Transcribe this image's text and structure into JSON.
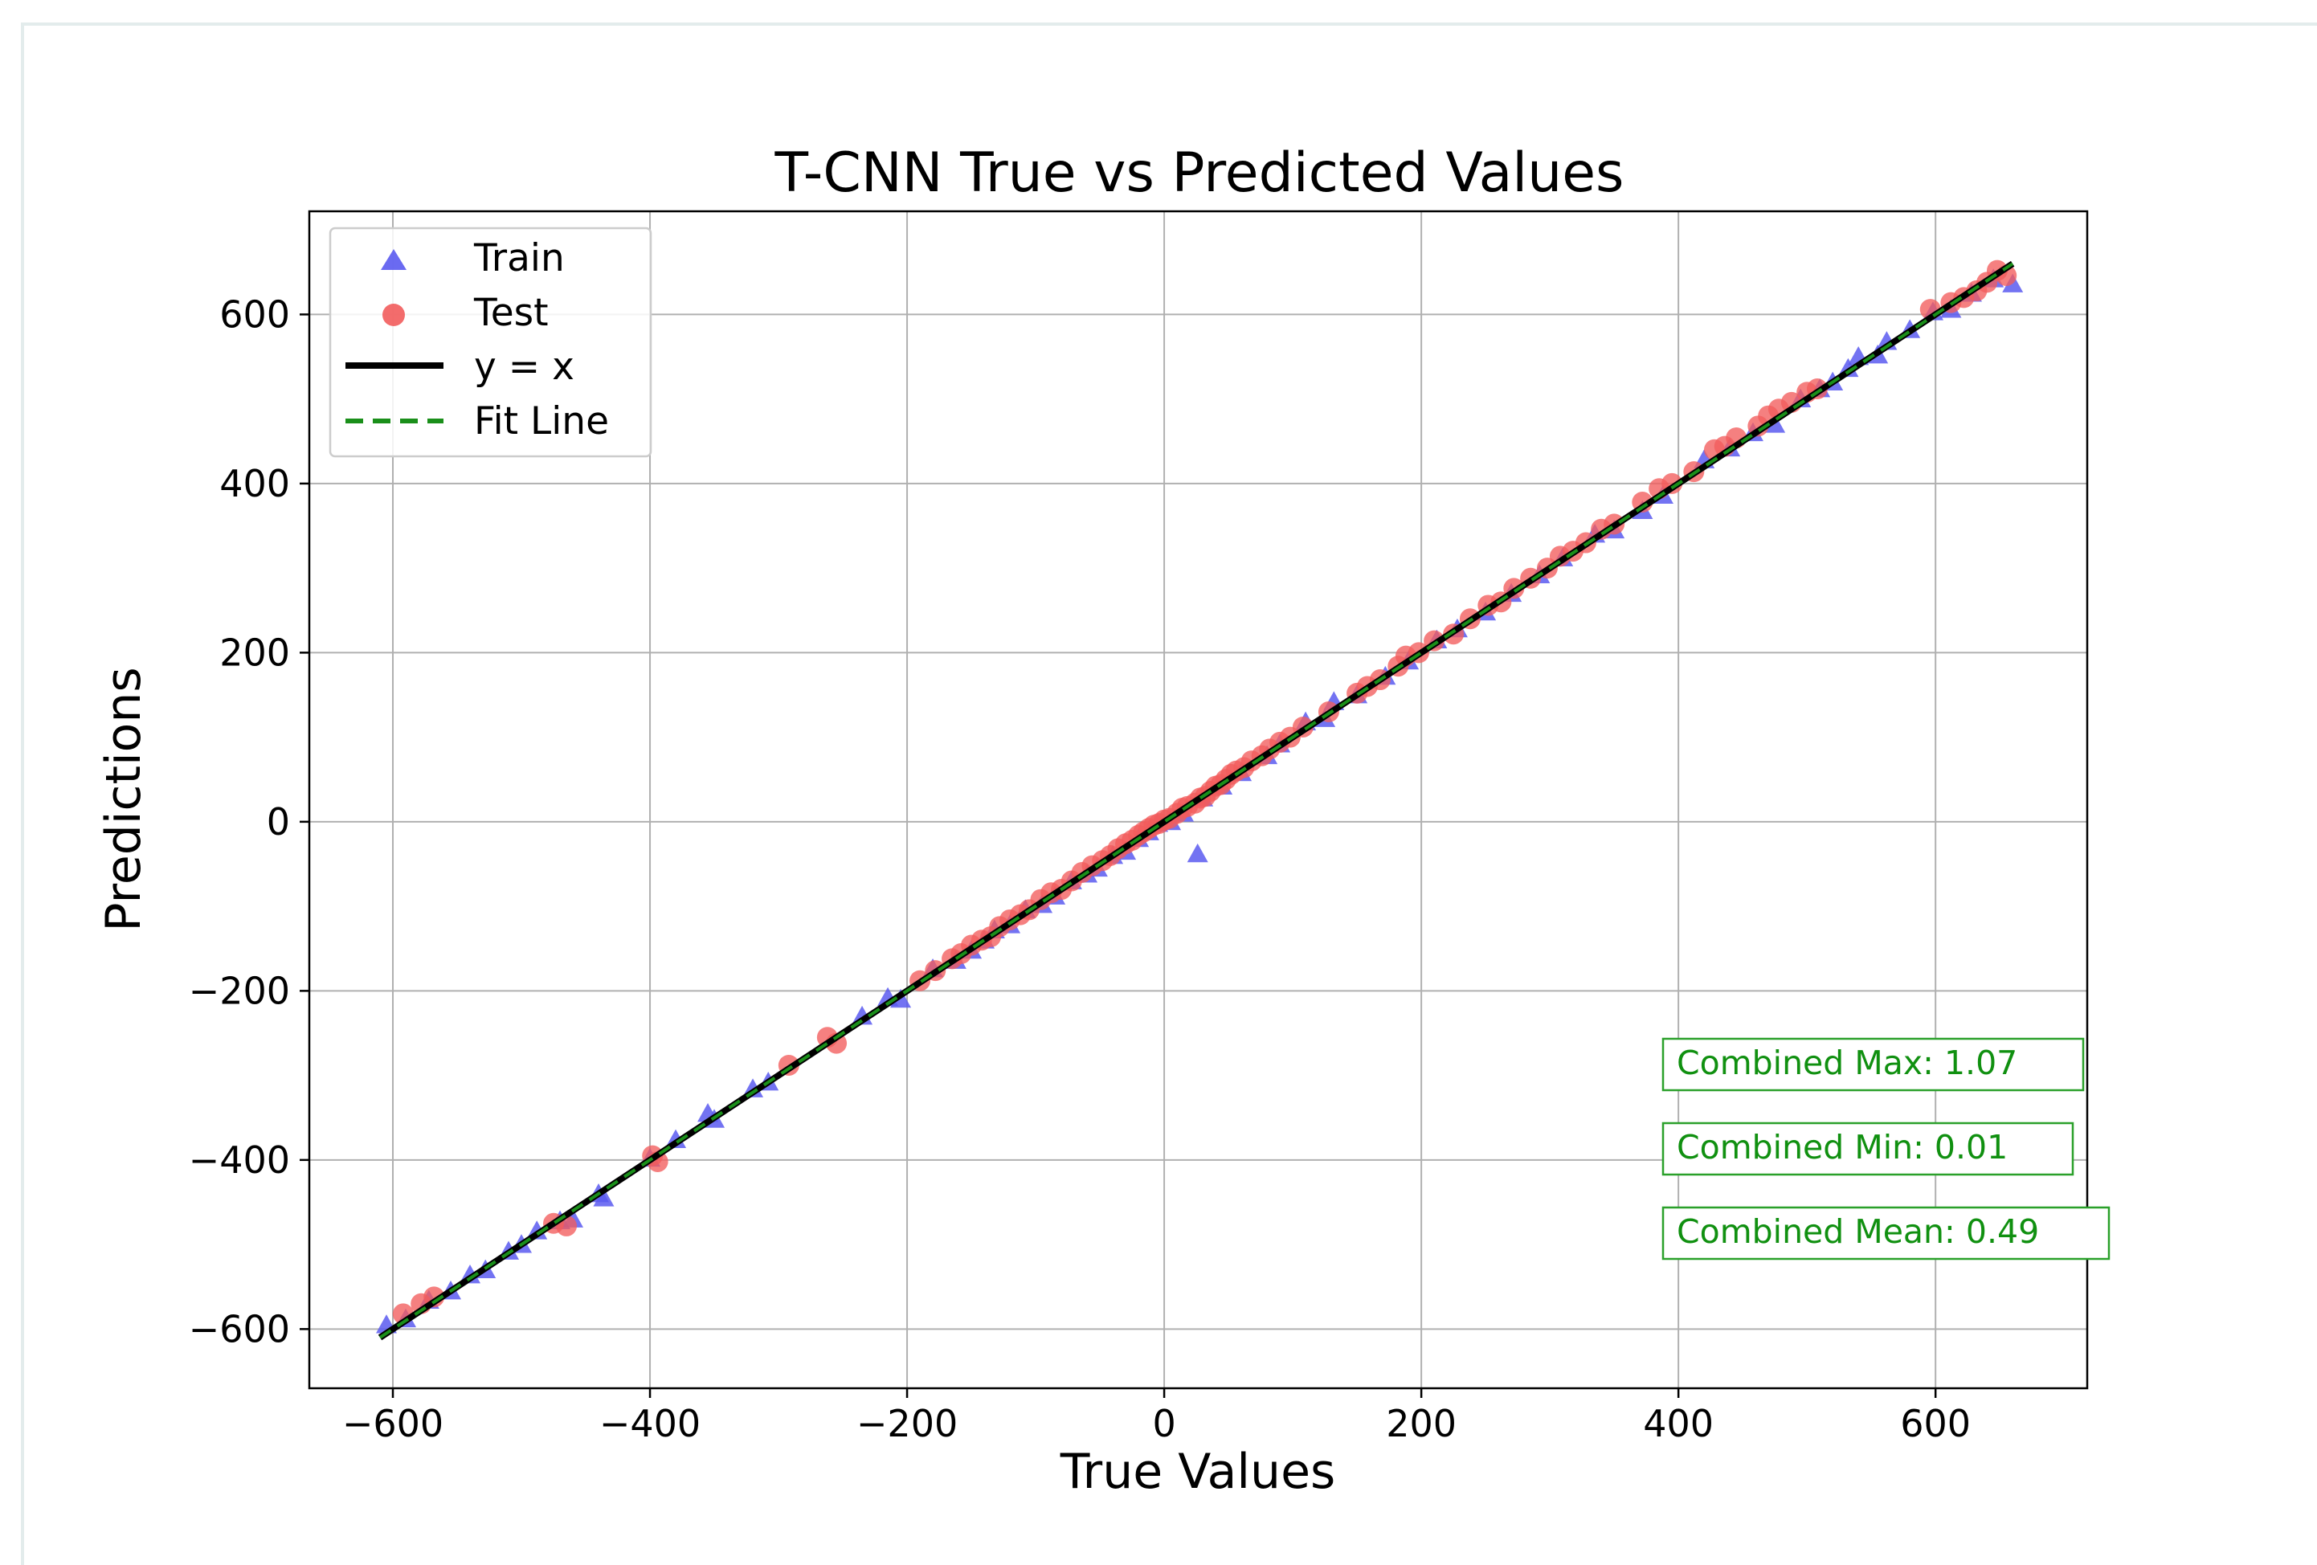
{
  "chart_data": {
    "type": "scatter",
    "title": "T-CNN True vs Predicted Values",
    "xlabel": "True Values",
    "ylabel": "Predictions",
    "xlim": [
      -665,
      718
    ],
    "ylim": [
      -670,
      722
    ],
    "xticks": [
      -600,
      -400,
      -200,
      0,
      200,
      400,
      600
    ],
    "yticks": [
      -600,
      -400,
      -200,
      0,
      200,
      400,
      600
    ],
    "xtick_labels": [
      "−600",
      "−400",
      "−200",
      "0",
      "200",
      "400",
      "600"
    ],
    "ytick_labels": [
      "−600",
      "−400",
      "−200",
      "0",
      "200",
      "400",
      "600"
    ],
    "grid": true,
    "legend_position": "upper-left",
    "colors": {
      "train": "#5a5af0",
      "test": "#f25c5c",
      "identity": "#000000",
      "fit": "#1a8f1a",
      "stats": "#109010"
    },
    "series": [
      {
        "name": "Train",
        "marker": "triangle",
        "points": [
          [
            -605,
            -595
          ],
          [
            -590,
            -588
          ],
          [
            -572,
            -566
          ],
          [
            -555,
            -555
          ],
          [
            -540,
            -536
          ],
          [
            -528,
            -530
          ],
          [
            -510,
            -508
          ],
          [
            -500,
            -500
          ],
          [
            -488,
            -484
          ],
          [
            -470,
            -472
          ],
          [
            -460,
            -470
          ],
          [
            -440,
            -440
          ],
          [
            -436,
            -445
          ],
          [
            -400,
            -398
          ],
          [
            -380,
            -376
          ],
          [
            -355,
            -345
          ],
          [
            -350,
            -352
          ],
          [
            -320,
            -316
          ],
          [
            -308,
            -308
          ],
          [
            -235,
            -230
          ],
          [
            -215,
            -208
          ],
          [
            -205,
            -210
          ],
          [
            -180,
            -174
          ],
          [
            -162,
            -164
          ],
          [
            -150,
            -152
          ],
          [
            -140,
            -140
          ],
          [
            -132,
            -128
          ],
          [
            -120,
            -122
          ],
          [
            -108,
            -104
          ],
          [
            -95,
            -98
          ],
          [
            -85,
            -88
          ],
          [
            -72,
            -70
          ],
          [
            -60,
            -62
          ],
          [
            -52,
            -55
          ],
          [
            -40,
            -40
          ],
          [
            -30,
            -35
          ],
          [
            -20,
            -20
          ],
          [
            -12,
            -12
          ],
          [
            -5,
            -2
          ],
          [
            5,
            0
          ],
          [
            15,
            10
          ],
          [
            26,
            -38
          ],
          [
            30,
            28
          ],
          [
            45,
            42
          ],
          [
            60,
            58
          ],
          [
            80,
            78
          ],
          [
            90,
            92
          ],
          [
            110,
            118
          ],
          [
            125,
            122
          ],
          [
            132,
            142
          ],
          [
            150,
            150
          ],
          [
            172,
            172
          ],
          [
            190,
            190
          ],
          [
            212,
            215
          ],
          [
            228,
            228
          ],
          [
            250,
            248
          ],
          [
            270,
            270
          ],
          [
            292,
            292
          ],
          [
            310,
            312
          ],
          [
            335,
            340
          ],
          [
            350,
            345
          ],
          [
            372,
            368
          ],
          [
            388,
            386
          ],
          [
            420,
            428
          ],
          [
            440,
            442
          ],
          [
            458,
            460
          ],
          [
            475,
            470
          ],
          [
            495,
            500
          ],
          [
            510,
            512
          ],
          [
            520,
            520
          ],
          [
            532,
            536
          ],
          [
            540,
            550
          ],
          [
            555,
            552
          ],
          [
            562,
            568
          ],
          [
            580,
            582
          ],
          [
            598,
            603
          ],
          [
            612,
            606
          ],
          [
            628,
            625
          ],
          [
            645,
            642
          ],
          [
            660,
            636
          ]
        ]
      },
      {
        "name": "Test",
        "marker": "circle",
        "points": [
          [
            -592,
            -582
          ],
          [
            -578,
            -570
          ],
          [
            -568,
            -562
          ],
          [
            -475,
            -475
          ],
          [
            -465,
            -478
          ],
          [
            -398,
            -395
          ],
          [
            -394,
            -402
          ],
          [
            -292,
            -288
          ],
          [
            -262,
            -255
          ],
          [
            -255,
            -262
          ],
          [
            -190,
            -188
          ],
          [
            -178,
            -176
          ],
          [
            -165,
            -162
          ],
          [
            -158,
            -156
          ],
          [
            -150,
            -146
          ],
          [
            -142,
            -140
          ],
          [
            -135,
            -136
          ],
          [
            -128,
            -124
          ],
          [
            -120,
            -116
          ],
          [
            -112,
            -110
          ],
          [
            -105,
            -104
          ],
          [
            -96,
            -92
          ],
          [
            -88,
            -84
          ],
          [
            -80,
            -80
          ],
          [
            -72,
            -70
          ],
          [
            -64,
            -60
          ],
          [
            -56,
            -52
          ],
          [
            -48,
            -46
          ],
          [
            -42,
            -40
          ],
          [
            -36,
            -32
          ],
          [
            -30,
            -26
          ],
          [
            -25,
            -22
          ],
          [
            -20,
            -16
          ],
          [
            -16,
            -12
          ],
          [
            -12,
            -8
          ],
          [
            -8,
            -4
          ],
          [
            -4,
            -2
          ],
          [
            0,
            2
          ],
          [
            4,
            4
          ],
          [
            10,
            10
          ],
          [
            14,
            16
          ],
          [
            18,
            18
          ],
          [
            24,
            22
          ],
          [
            28,
            28
          ],
          [
            32,
            30
          ],
          [
            36,
            36
          ],
          [
            40,
            42
          ],
          [
            44,
            44
          ],
          [
            48,
            50
          ],
          [
            52,
            56
          ],
          [
            56,
            60
          ],
          [
            62,
            64
          ],
          [
            68,
            72
          ],
          [
            76,
            78
          ],
          [
            82,
            86
          ],
          [
            90,
            94
          ],
          [
            98,
            100
          ],
          [
            108,
            112
          ],
          [
            128,
            130
          ],
          [
            150,
            152
          ],
          [
            158,
            160
          ],
          [
            168,
            168
          ],
          [
            182,
            184
          ],
          [
            188,
            196
          ],
          [
            198,
            200
          ],
          [
            210,
            214
          ],
          [
            225,
            222
          ],
          [
            238,
            240
          ],
          [
            252,
            256
          ],
          [
            262,
            260
          ],
          [
            272,
            276
          ],
          [
            285,
            288
          ],
          [
            298,
            300
          ],
          [
            308,
            314
          ],
          [
            318,
            320
          ],
          [
            328,
            330
          ],
          [
            340,
            346
          ],
          [
            350,
            352
          ],
          [
            372,
            378
          ],
          [
            385,
            394
          ],
          [
            395,
            400
          ],
          [
            412,
            414
          ],
          [
            428,
            440
          ],
          [
            436,
            444
          ],
          [
            445,
            454
          ],
          [
            462,
            468
          ],
          [
            470,
            480
          ],
          [
            478,
            488
          ],
          [
            488,
            496
          ],
          [
            500,
            508
          ],
          [
            508,
            512
          ],
          [
            596,
            606
          ],
          [
            612,
            614
          ],
          [
            622,
            620
          ],
          [
            632,
            628
          ],
          [
            640,
            638
          ],
          [
            648,
            652
          ],
          [
            655,
            646
          ]
        ]
      },
      {
        "name": "y = x",
        "type": "line",
        "x": [
          -610,
          660
        ],
        "y": [
          -610,
          660
        ]
      },
      {
        "name": "Fit Line",
        "type": "dashed-line",
        "x": [
          -610,
          660
        ],
        "y": [
          -610,
          660
        ]
      }
    ],
    "annotations": [
      {
        "key": "max",
        "text": "Combined Max: 1.07"
      },
      {
        "key": "min",
        "text": "Combined Min: 0.01"
      },
      {
        "key": "mean",
        "text": "Combined Mean: 0.49"
      }
    ]
  }
}
